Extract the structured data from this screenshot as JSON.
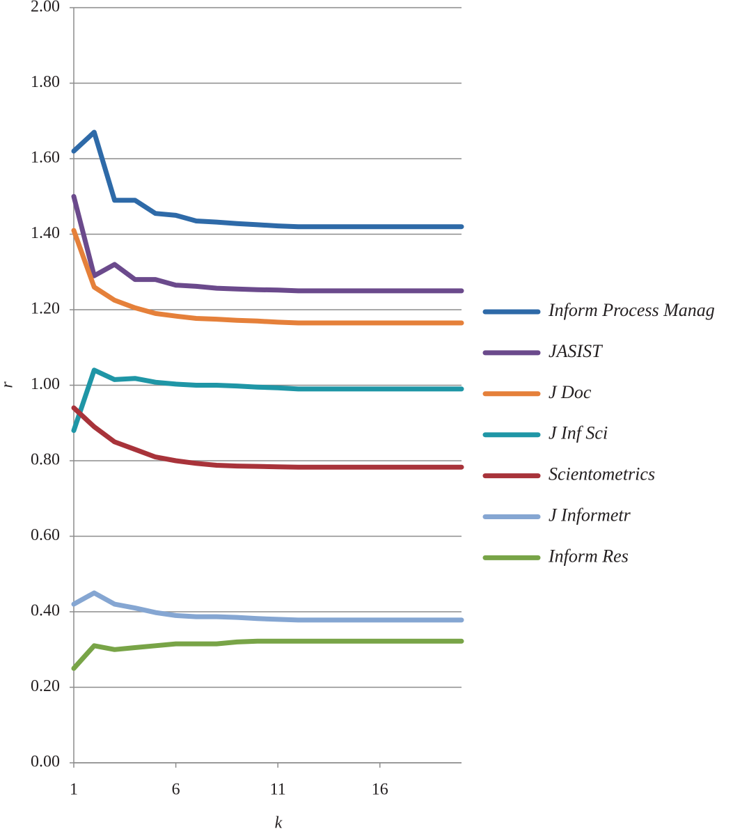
{
  "chart_data": {
    "type": "line",
    "x_label": "k",
    "y_label": "r",
    "x": [
      1,
      2,
      3,
      4,
      5,
      6,
      7,
      8,
      9,
      10,
      11,
      12,
      13,
      14,
      15,
      16,
      17,
      18,
      19,
      20
    ],
    "xlim": [
      1,
      20
    ],
    "xticks": [
      1,
      6,
      11,
      16
    ],
    "ylim": [
      0,
      2
    ],
    "yticks": [
      {
        "value": 0,
        "label": "0.00"
      },
      {
        "value": 0.2,
        "label": "0.20"
      },
      {
        "value": 0.4,
        "label": "0.40"
      },
      {
        "value": 0.6,
        "label": "0.60"
      },
      {
        "value": 0.8,
        "label": "0.80"
      },
      {
        "value": 1,
        "label": "1.00"
      },
      {
        "value": 1.2,
        "label": "1.20"
      },
      {
        "value": 1.4,
        "label": "1.40"
      },
      {
        "value": 1.6,
        "label": "1.60"
      },
      {
        "value": 1.8,
        "label": "1.80"
      },
      {
        "value": 2,
        "label": "2.00"
      }
    ],
    "grid": true,
    "legend": "right",
    "series": [
      {
        "name": "Inform Process Manag",
        "color": "#2e6aa8",
        "values": [
          1.62,
          1.67,
          1.49,
          1.49,
          1.455,
          1.45,
          1.435,
          1.432,
          1.428,
          1.425,
          1.422,
          1.42,
          1.42,
          1.42,
          1.42,
          1.42,
          1.42,
          1.42,
          1.42,
          1.42
        ]
      },
      {
        "name": "JASIST",
        "color": "#6b4a8c",
        "values": [
          1.5,
          1.29,
          1.32,
          1.28,
          1.28,
          1.265,
          1.262,
          1.257,
          1.255,
          1.253,
          1.252,
          1.25,
          1.25,
          1.25,
          1.25,
          1.25,
          1.25,
          1.25,
          1.25,
          1.25
        ]
      },
      {
        "name": "J Doc",
        "color": "#e5803a",
        "values": [
          1.41,
          1.26,
          1.225,
          1.205,
          1.19,
          1.183,
          1.177,
          1.175,
          1.172,
          1.17,
          1.167,
          1.165,
          1.165,
          1.165,
          1.165,
          1.165,
          1.165,
          1.165,
          1.165,
          1.165
        ]
      },
      {
        "name": "J Inf Sci",
        "color": "#1f96a6",
        "values": [
          0.88,
          1.04,
          1.015,
          1.018,
          1.008,
          1.003,
          1.0,
          1.0,
          0.998,
          0.995,
          0.993,
          0.99,
          0.99,
          0.99,
          0.99,
          0.99,
          0.99,
          0.99,
          0.99,
          0.99
        ]
      },
      {
        "name": "Scientometrics",
        "color": "#a8333a",
        "values": [
          0.94,
          0.89,
          0.85,
          0.83,
          0.81,
          0.8,
          0.793,
          0.788,
          0.786,
          0.785,
          0.784,
          0.783,
          0.783,
          0.783,
          0.783,
          0.783,
          0.783,
          0.783,
          0.783,
          0.783
        ]
      },
      {
        "name": "J Informetr",
        "color": "#85a6d2",
        "values": [
          0.42,
          0.45,
          0.42,
          0.41,
          0.398,
          0.39,
          0.387,
          0.387,
          0.385,
          0.382,
          0.38,
          0.378,
          0.378,
          0.378,
          0.378,
          0.378,
          0.378,
          0.378,
          0.378,
          0.378
        ]
      },
      {
        "name": "Inform Res",
        "color": "#78a447",
        "values": [
          0.25,
          0.31,
          0.3,
          0.305,
          0.31,
          0.315,
          0.315,
          0.315,
          0.32,
          0.322,
          0.322,
          0.322,
          0.322,
          0.322,
          0.322,
          0.322,
          0.322,
          0.322,
          0.322,
          0.322
        ]
      }
    ]
  }
}
